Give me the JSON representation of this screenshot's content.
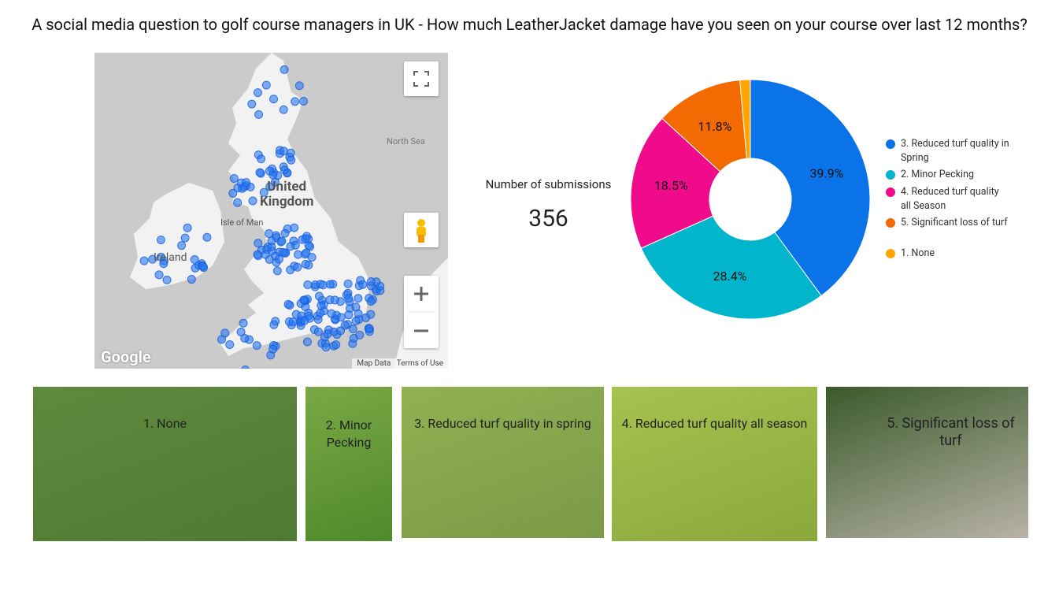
{
  "title": "A social media question to golf course managers in UK - How much LeatherJacket damage have you seen on your course over last 12 months?",
  "map": {
    "sea": "North Sea",
    "country_line1": "United",
    "country_line2": "Kingdom",
    "isle": "Isle of Man",
    "ireland": "Ireland",
    "brand": "Google",
    "map_data": "Map Data",
    "terms": "Terms of Use"
  },
  "scorecard": {
    "label": "Number of submissions",
    "value": 356
  },
  "chart_data": {
    "type": "pie",
    "donut": true,
    "categories": [
      "3. Reduced turf quality in Spring",
      "2. Minor Pecking",
      "4. Reduced turf quality all Season",
      "5. Significant loss of turf",
      "1. None"
    ],
    "values": [
      39.9,
      28.4,
      18.5,
      11.8,
      1.4
    ],
    "value_labels": [
      "39.9%",
      "28.4%",
      "18.5%",
      "11.8%",
      null
    ],
    "colors": [
      "#0a73e8",
      "#00b5cc",
      "#ef0b8b",
      "#f26a00",
      "#ffa400"
    ],
    "legend": "right"
  },
  "images": [
    {
      "caption": "1. None"
    },
    {
      "caption": "2. Minor Pecking"
    },
    {
      "caption": "3. Reduced turf quality in spring"
    },
    {
      "caption": "4. Reduced turf quality all season"
    },
    {
      "caption": "5. Significant loss of turf"
    }
  ]
}
